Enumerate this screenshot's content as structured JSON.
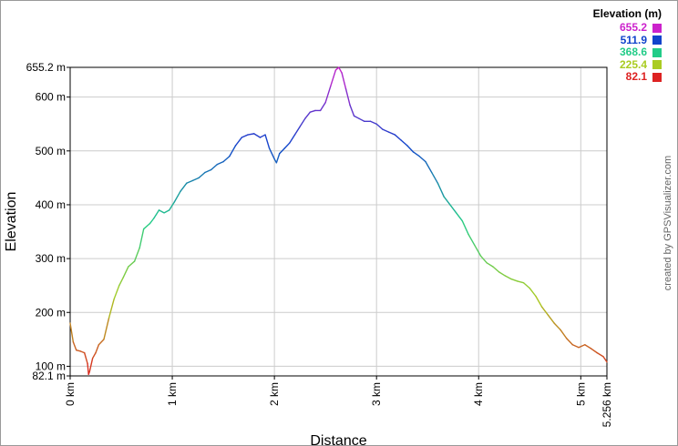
{
  "chart_data": {
    "type": "line",
    "title": "",
    "xlabel": "Distance",
    "ylabel": "Elevation",
    "x_unit": "km",
    "y_unit": "m",
    "xlim": [
      0,
      5.256
    ],
    "ylim": [
      82.1,
      655.2
    ],
    "x_ticks": [
      {
        "value": 0,
        "label": "0 km"
      },
      {
        "value": 1,
        "label": "1 km"
      },
      {
        "value": 2,
        "label": "2 km"
      },
      {
        "value": 3,
        "label": "3 km"
      },
      {
        "value": 4,
        "label": "4 km"
      },
      {
        "value": 5,
        "label": "5 km"
      },
      {
        "value": 5.256,
        "label": "5.256 km"
      }
    ],
    "y_ticks": [
      {
        "value": 82.1,
        "label": "82.1 m"
      },
      {
        "value": 100,
        "label": "100 m"
      },
      {
        "value": 200,
        "label": "200 m"
      },
      {
        "value": 300,
        "label": "300 m"
      },
      {
        "value": 400,
        "label": "400 m"
      },
      {
        "value": 500,
        "label": "500 m"
      },
      {
        "value": 600,
        "label": "600 m"
      },
      {
        "value": 655.2,
        "label": "655.2 m"
      }
    ],
    "grid": true,
    "legend": {
      "title": "Elevation (m)",
      "placement": "top-right",
      "entries": [
        {
          "label": "655.2",
          "color": "#cc22cc"
        },
        {
          "label": "511.9",
          "color": "#1144cc"
        },
        {
          "label": "368.6",
          "color": "#22cc88"
        },
        {
          "label": "225.4",
          "color": "#aacc22"
        },
        {
          "label": "82.1",
          "color": "#dd2222"
        }
      ]
    },
    "series": [
      {
        "points": [
          [
            0.0,
            180
          ],
          [
            0.03,
            145
          ],
          [
            0.06,
            130
          ],
          [
            0.1,
            128
          ],
          [
            0.14,
            125
          ],
          [
            0.17,
            105
          ],
          [
            0.18,
            85
          ],
          [
            0.19,
            90
          ],
          [
            0.22,
            115
          ],
          [
            0.25,
            125
          ],
          [
            0.28,
            140
          ],
          [
            0.33,
            150
          ],
          [
            0.38,
            190
          ],
          [
            0.43,
            225
          ],
          [
            0.48,
            250
          ],
          [
            0.52,
            265
          ],
          [
            0.57,
            285
          ],
          [
            0.63,
            295
          ],
          [
            0.68,
            320
          ],
          [
            0.72,
            355
          ],
          [
            0.78,
            365
          ],
          [
            0.82,
            375
          ],
          [
            0.87,
            390
          ],
          [
            0.92,
            385
          ],
          [
            0.97,
            390
          ],
          [
            1.02,
            405
          ],
          [
            1.08,
            425
          ],
          [
            1.14,
            440
          ],
          [
            1.2,
            445
          ],
          [
            1.26,
            450
          ],
          [
            1.32,
            460
          ],
          [
            1.38,
            465
          ],
          [
            1.44,
            475
          ],
          [
            1.5,
            480
          ],
          [
            1.56,
            490
          ],
          [
            1.62,
            510
          ],
          [
            1.68,
            525
          ],
          [
            1.74,
            530
          ],
          [
            1.8,
            532
          ],
          [
            1.86,
            525
          ],
          [
            1.91,
            530
          ],
          [
            1.95,
            505
          ],
          [
            2.0,
            485
          ],
          [
            2.02,
            478
          ],
          [
            2.05,
            495
          ],
          [
            2.1,
            505
          ],
          [
            2.15,
            515
          ],
          [
            2.2,
            530
          ],
          [
            2.25,
            545
          ],
          [
            2.3,
            560
          ],
          [
            2.35,
            572
          ],
          [
            2.4,
            575
          ],
          [
            2.45,
            575
          ],
          [
            2.5,
            590
          ],
          [
            2.55,
            620
          ],
          [
            2.6,
            650
          ],
          [
            2.63,
            655.2
          ],
          [
            2.66,
            645
          ],
          [
            2.7,
            615
          ],
          [
            2.74,
            585
          ],
          [
            2.78,
            565
          ],
          [
            2.83,
            560
          ],
          [
            2.88,
            555
          ],
          [
            2.94,
            555
          ],
          [
            3.0,
            550
          ],
          [
            3.06,
            540
          ],
          [
            3.12,
            535
          ],
          [
            3.18,
            530
          ],
          [
            3.24,
            520
          ],
          [
            3.3,
            510
          ],
          [
            3.36,
            498
          ],
          [
            3.42,
            490
          ],
          [
            3.48,
            480
          ],
          [
            3.54,
            460
          ],
          [
            3.6,
            440
          ],
          [
            3.66,
            415
          ],
          [
            3.72,
            400
          ],
          [
            3.78,
            385
          ],
          [
            3.84,
            370
          ],
          [
            3.9,
            345
          ],
          [
            3.96,
            325
          ],
          [
            4.02,
            305
          ],
          [
            4.08,
            292
          ],
          [
            4.14,
            285
          ],
          [
            4.2,
            275
          ],
          [
            4.26,
            268
          ],
          [
            4.32,
            262
          ],
          [
            4.38,
            258
          ],
          [
            4.44,
            255
          ],
          [
            4.5,
            245
          ],
          [
            4.56,
            230
          ],
          [
            4.62,
            210
          ],
          [
            4.68,
            195
          ],
          [
            4.74,
            180
          ],
          [
            4.8,
            168
          ],
          [
            4.86,
            152
          ],
          [
            4.92,
            140
          ],
          [
            4.98,
            135
          ],
          [
            5.04,
            140
          ],
          [
            5.1,
            133
          ],
          [
            5.16,
            125
          ],
          [
            5.22,
            118
          ],
          [
            5.256,
            108
          ]
        ]
      }
    ]
  },
  "credit": "created by GPSVisualizer.com"
}
